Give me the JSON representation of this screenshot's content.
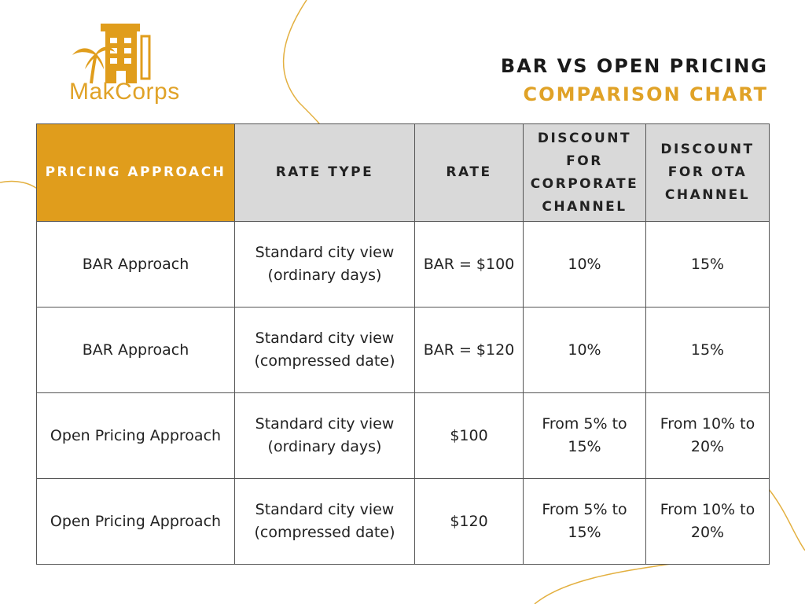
{
  "brand": {
    "name": "MakCorps",
    "accent_color": "#e09d1c",
    "logo_icon": "hotel-palm-icon"
  },
  "title": {
    "line1": "BAR VS OPEN PRICING",
    "line2": "COMPARISON CHART"
  },
  "table": {
    "headers": [
      "PRICING APPROACH",
      "RATE TYPE",
      "RATE",
      "DISCOUNT FOR CORPORATE CHANNEL",
      "DISCOUNT FOR OTA CHANNEL"
    ],
    "rows": [
      [
        "BAR Approach",
        "Standard city view (ordinary days)",
        "BAR = $100",
        "10%",
        "15%"
      ],
      [
        "BAR Approach",
        "Standard city view (compressed date)",
        "BAR = $120",
        "10%",
        "15%"
      ],
      [
        "Open Pricing Approach",
        "Standard city view (ordinary days)",
        "$100",
        "From 5% to 15%",
        "From 10% to 20%"
      ],
      [
        "Open Pricing Approach",
        "Standard city view (compressed date)",
        "$120",
        "From 5% to 15%",
        "From 10% to 20%"
      ]
    ]
  }
}
